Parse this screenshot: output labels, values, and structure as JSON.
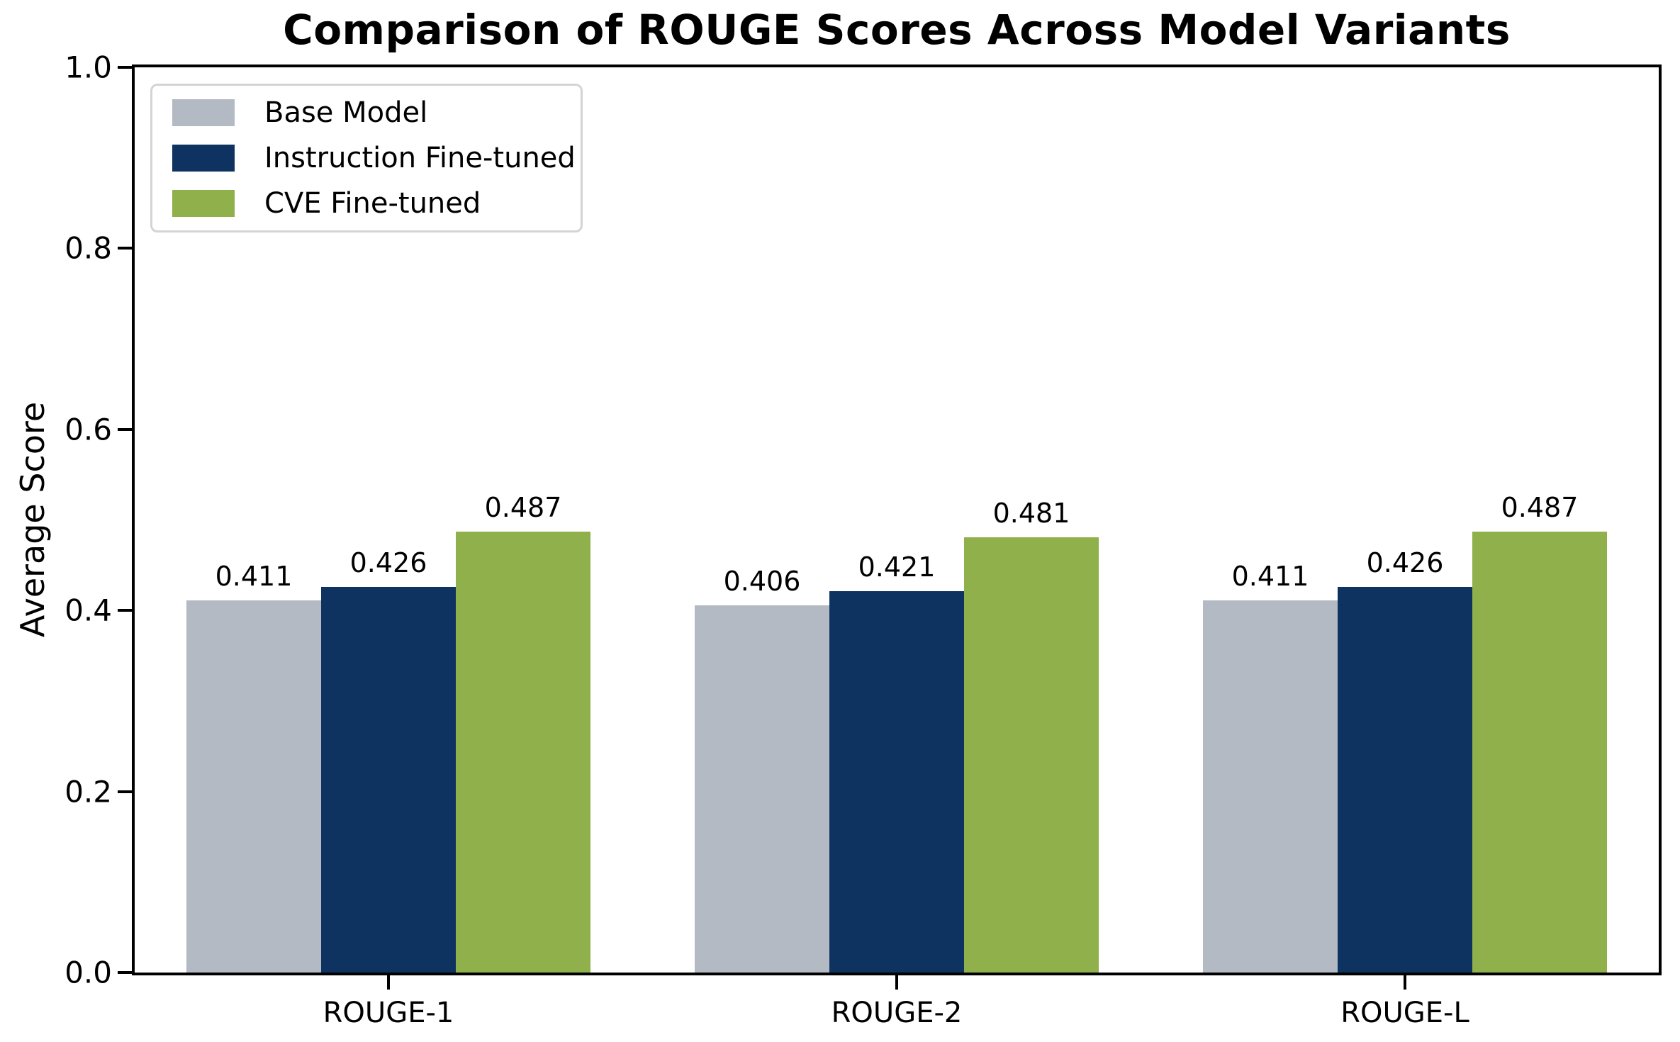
{
  "chart_data": {
    "type": "bar",
    "title": "Comparison of ROUGE Scores Across Model Variants",
    "xlabel": "",
    "ylabel": "Average Score",
    "categories": [
      "ROUGE-1",
      "ROUGE-2",
      "ROUGE-L"
    ],
    "series": [
      {
        "name": "Base Model",
        "color": "#b3bac4",
        "values": [
          0.411,
          0.406,
          0.411
        ],
        "labels": [
          "0.411",
          "0.406",
          "0.411"
        ]
      },
      {
        "name": "Instruction Fine-tuned",
        "color": "#0f3360",
        "values": [
          0.426,
          0.421,
          0.426
        ],
        "labels": [
          "0.426",
          "0.421",
          "0.426"
        ]
      },
      {
        "name": "CVE Fine-tuned",
        "color": "#8fb04a",
        "values": [
          0.487,
          0.481,
          0.487
        ],
        "labels": [
          "0.487",
          "0.481",
          "0.487"
        ]
      }
    ],
    "ylim": [
      0.0,
      1.0
    ],
    "yticks": [
      "0.0",
      "0.2",
      "0.4",
      "0.6",
      "0.8",
      "1.0"
    ],
    "grid": false,
    "legend_position": "upper-left",
    "bar_value_labels_shown": true,
    "spine_color": "#000000",
    "background_color": "#ffffff"
  }
}
